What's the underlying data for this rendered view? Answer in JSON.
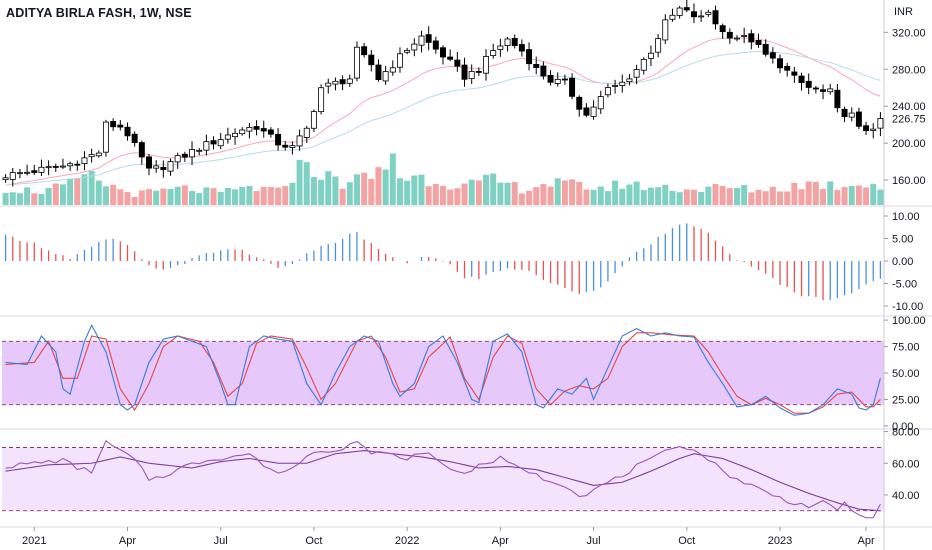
{
  "chart_data": {
    "type": "candlestick",
    "title": "ADITYA BIRLA FASH, 1W, NSE",
    "currency": "INR",
    "colors": {
      "candle_up": "#ffffff",
      "candle_down": "#000000",
      "volume_up": "#7fd1c4",
      "volume_down": "#f4a3a3",
      "ema_fast": "#f7a9b8",
      "ema_slow": "#b5dde6",
      "macd_up": "#4a90e2",
      "macd_down": "#e85050",
      "stoch_k": "#3a7bd5",
      "stoch_d": "#e84545",
      "stoch_band": "#e7c8fb",
      "rsi_line": "#9b55b8",
      "rsi_ma": "#7b3f9a",
      "rsi_band": "#f3e3fc",
      "dash_line": "#7a1a4a"
    },
    "price_axis": {
      "ticks": [
        {
          "label": "320.00",
          "value": 320
        },
        {
          "label": "280.00",
          "value": 280
        },
        {
          "label": "240.00",
          "value": 240
        },
        {
          "label": "200.00",
          "value": 200
        },
        {
          "label": "160.00",
          "value": 160
        }
      ],
      "last_price_label": "226.75",
      "last_price": 226.75,
      "range": [
        133,
        355
      ]
    },
    "macd_axis": {
      "ticks": [
        {
          "label": "10.00",
          "value": 10
        },
        {
          "label": "5.00",
          "value": 5
        },
        {
          "label": "0.00",
          "value": 0
        },
        {
          "label": "-5.00",
          "value": -5
        },
        {
          "label": "-10.00",
          "value": -10
        }
      ],
      "range": [
        -12,
        12
      ]
    },
    "stoch_axis": {
      "ticks": [
        {
          "label": "100.00",
          "value": 100
        },
        {
          "label": "75.00",
          "value": 75
        },
        {
          "label": "50.00",
          "value": 50
        },
        {
          "label": "25.00",
          "value": 25
        },
        {
          "label": "0.00",
          "value": 0
        }
      ],
      "range": [
        -2,
        102
      ],
      "bands": [
        80,
        20
      ]
    },
    "rsi_axis": {
      "ticks": [
        {
          "label": "80.00",
          "value": 80
        },
        {
          "label": "60.00",
          "value": 60
        },
        {
          "label": "40.00",
          "value": 40
        }
      ],
      "range": [
        21,
        81
      ],
      "bands": [
        70,
        30
      ]
    },
    "x_ticks": [
      {
        "label": "2021",
        "index": 4
      },
      {
        "label": "Apr",
        "index": 17
      },
      {
        "label": "Jul",
        "index": 30
      },
      {
        "label": "Oct",
        "index": 43
      },
      {
        "label": "2022",
        "index": 56
      },
      {
        "label": "Apr",
        "index": 69
      },
      {
        "label": "Jul",
        "index": 82
      },
      {
        "label": "Oct",
        "index": 95
      },
      {
        "label": "2023",
        "index": 108
      },
      {
        "label": "Apr",
        "index": 120
      }
    ],
    "price_pivots": [
      [
        0,
        165
      ],
      [
        4,
        170
      ],
      [
        8,
        175
      ],
      [
        10,
        180
      ],
      [
        13,
        190
      ],
      [
        14,
        220
      ],
      [
        16,
        218
      ],
      [
        17,
        210
      ],
      [
        20,
        170
      ],
      [
        22,
        175
      ],
      [
        27,
        195
      ],
      [
        30,
        205
      ],
      [
        33,
        215
      ],
      [
        35,
        218
      ],
      [
        38,
        200
      ],
      [
        40,
        195
      ],
      [
        42,
        215
      ],
      [
        44,
        260
      ],
      [
        48,
        270
      ],
      [
        49,
        300
      ],
      [
        51,
        285
      ],
      [
        52,
        270
      ],
      [
        54,
        285
      ],
      [
        56,
        302
      ],
      [
        58,
        315
      ],
      [
        61,
        295
      ],
      [
        64,
        272
      ],
      [
        66,
        280
      ],
      [
        68,
        300
      ],
      [
        70,
        312
      ],
      [
        72,
        300
      ],
      [
        74,
        280
      ],
      [
        76,
        268
      ],
      [
        78,
        265
      ],
      [
        80,
        240
      ],
      [
        81,
        230
      ],
      [
        82,
        240
      ],
      [
        84,
        258
      ],
      [
        86,
        265
      ],
      [
        88,
        280
      ],
      [
        90,
        300
      ],
      [
        92,
        330
      ],
      [
        94,
        345
      ],
      [
        96,
        338
      ],
      [
        97,
        335
      ],
      [
        98,
        342
      ],
      [
        100,
        320
      ],
      [
        102,
        315
      ],
      [
        104,
        312
      ],
      [
        106,
        295
      ],
      [
        108,
        285
      ],
      [
        110,
        270
      ],
      [
        112,
        260
      ],
      [
        114,
        255
      ],
      [
        115,
        255
      ],
      [
        116,
        235
      ],
      [
        118,
        230
      ],
      [
        119,
        215
      ],
      [
        120,
        215
      ],
      [
        121,
        218
      ],
      [
        122,
        226.75
      ]
    ],
    "volume_pivots": [
      [
        0,
        0.3
      ],
      [
        5,
        0.25
      ],
      [
        10,
        0.4
      ],
      [
        11,
        0.55
      ],
      [
        14,
        0.38
      ],
      [
        16,
        0.28
      ],
      [
        18,
        0.2
      ],
      [
        25,
        0.3
      ],
      [
        30,
        0.22
      ],
      [
        34,
        0.32
      ],
      [
        38,
        0.25
      ],
      [
        40,
        0.55
      ],
      [
        42,
        0.8
      ],
      [
        44,
        0.55
      ],
      [
        47,
        0.4
      ],
      [
        51,
        0.52
      ],
      [
        53,
        0.68
      ],
      [
        54,
        1.0
      ],
      [
        55,
        0.5
      ],
      [
        58,
        0.5
      ],
      [
        64,
        0.35
      ],
      [
        68,
        0.45
      ],
      [
        72,
        0.3
      ],
      [
        76,
        0.4
      ],
      [
        80,
        0.35
      ],
      [
        84,
        0.3
      ],
      [
        86,
        0.4
      ],
      [
        88,
        0.35
      ],
      [
        92,
        0.32
      ],
      [
        96,
        0.28
      ],
      [
        100,
        0.32
      ],
      [
        104,
        0.28
      ],
      [
        108,
        0.3
      ],
      [
        112,
        0.4
      ],
      [
        116,
        0.35
      ],
      [
        120,
        0.42
      ],
      [
        122,
        0.32
      ]
    ],
    "macd_pivots": [
      [
        0,
        5.5
      ],
      [
        3,
        4.5
      ],
      [
        6,
        2.5
      ],
      [
        9,
        0.5
      ],
      [
        12,
        3.0
      ],
      [
        14,
        4.8
      ],
      [
        16,
        4.5
      ],
      [
        18,
        2.0
      ],
      [
        19,
        0.0
      ],
      [
        21,
        -2.0
      ],
      [
        24,
        -1.0
      ],
      [
        27,
        1.0
      ],
      [
        30,
        2.5
      ],
      [
        33,
        2.5
      ],
      [
        35,
        1.0
      ],
      [
        37,
        -1.0
      ],
      [
        39,
        -1.5
      ],
      [
        41,
        0.5
      ],
      [
        43,
        2.5
      ],
      [
        45,
        3.5
      ],
      [
        47,
        5.0
      ],
      [
        49,
        6.5
      ],
      [
        50,
        5.0
      ],
      [
        52,
        2.5
      ],
      [
        54,
        0.5
      ],
      [
        56,
        -0.5
      ],
      [
        58,
        1.0
      ],
      [
        60,
        0.5
      ],
      [
        62,
        -1.0
      ],
      [
        64,
        -3.5
      ],
      [
        66,
        -4.0
      ],
      [
        68,
        -2.5
      ],
      [
        70,
        -1.5
      ],
      [
        72,
        -2.0
      ],
      [
        74,
        -3.0
      ],
      [
        76,
        -5.0
      ],
      [
        78,
        -6.0
      ],
      [
        80,
        -7.0
      ],
      [
        81,
        -7.0
      ],
      [
        83,
        -5.5
      ],
      [
        85,
        -3.0
      ],
      [
        87,
        0.5
      ],
      [
        89,
        3.0
      ],
      [
        91,
        5.0
      ],
      [
        93,
        7.0
      ],
      [
        95,
        8.5
      ],
      [
        96,
        8.0
      ],
      [
        98,
        6.0
      ],
      [
        100,
        3.0
      ],
      [
        102,
        0.5
      ],
      [
        104,
        -1.5
      ],
      [
        106,
        -3.0
      ],
      [
        108,
        -5.0
      ],
      [
        110,
        -7.0
      ],
      [
        112,
        -8.0
      ],
      [
        114,
        -8.5
      ],
      [
        116,
        -8.0
      ],
      [
        118,
        -7.0
      ],
      [
        120,
        -5.5
      ],
      [
        122,
        -4.0
      ]
    ],
    "stoch_k_pivots": [
      [
        0,
        60
      ],
      [
        3,
        58
      ],
      [
        5,
        85
      ],
      [
        7,
        70
      ],
      [
        8,
        35
      ],
      [
        9,
        30
      ],
      [
        11,
        80
      ],
      [
        12,
        95
      ],
      [
        14,
        70
      ],
      [
        16,
        20
      ],
      [
        17,
        15
      ],
      [
        18,
        20
      ],
      [
        20,
        60
      ],
      [
        22,
        82
      ],
      [
        24,
        85
      ],
      [
        26,
        80
      ],
      [
        28,
        75
      ],
      [
        30,
        40
      ],
      [
        31,
        20
      ],
      [
        32,
        20
      ],
      [
        34,
        75
      ],
      [
        36,
        85
      ],
      [
        38,
        82
      ],
      [
        40,
        80
      ],
      [
        42,
        40
      ],
      [
        44,
        20
      ],
      [
        46,
        50
      ],
      [
        48,
        75
      ],
      [
        50,
        85
      ],
      [
        52,
        80
      ],
      [
        54,
        40
      ],
      [
        55,
        28
      ],
      [
        57,
        40
      ],
      [
        59,
        75
      ],
      [
        61,
        85
      ],
      [
        63,
        60
      ],
      [
        65,
        25
      ],
      [
        66,
        22
      ],
      [
        68,
        80
      ],
      [
        70,
        87
      ],
      [
        72,
        70
      ],
      [
        74,
        20
      ],
      [
        75,
        17
      ],
      [
        77,
        35
      ],
      [
        79,
        30
      ],
      [
        81,
        45
      ],
      [
        82,
        25
      ],
      [
        84,
        55
      ],
      [
        86,
        85
      ],
      [
        88,
        92
      ],
      [
        90,
        85
      ],
      [
        92,
        88
      ],
      [
        94,
        85
      ],
      [
        96,
        84
      ],
      [
        98,
        60
      ],
      [
        100,
        40
      ],
      [
        102,
        18
      ],
      [
        104,
        20
      ],
      [
        106,
        28
      ],
      [
        108,
        17
      ],
      [
        110,
        10
      ],
      [
        112,
        12
      ],
      [
        114,
        20
      ],
      [
        116,
        35
      ],
      [
        118,
        30
      ],
      [
        119,
        17
      ],
      [
        120,
        15
      ],
      [
        121,
        20
      ],
      [
        122,
        45
      ]
    ],
    "stoch_d_pivots": [
      [
        0,
        58
      ],
      [
        4,
        60
      ],
      [
        6,
        80
      ],
      [
        8,
        45
      ],
      [
        10,
        45
      ],
      [
        12,
        85
      ],
      [
        14,
        82
      ],
      [
        16,
        35
      ],
      [
        18,
        15
      ],
      [
        20,
        40
      ],
      [
        22,
        75
      ],
      [
        24,
        85
      ],
      [
        27,
        80
      ],
      [
        29,
        60
      ],
      [
        31,
        28
      ],
      [
        33,
        40
      ],
      [
        35,
        78
      ],
      [
        37,
        85
      ],
      [
        40,
        82
      ],
      [
        42,
        55
      ],
      [
        44,
        25
      ],
      [
        46,
        40
      ],
      [
        49,
        80
      ],
      [
        51,
        85
      ],
      [
        53,
        65
      ],
      [
        55,
        32
      ],
      [
        57,
        35
      ],
      [
        59,
        65
      ],
      [
        62,
        84
      ],
      [
        64,
        45
      ],
      [
        66,
        25
      ],
      [
        68,
        65
      ],
      [
        70,
        85
      ],
      [
        72,
        78
      ],
      [
        74,
        35
      ],
      [
        76,
        20
      ],
      [
        78,
        33
      ],
      [
        80,
        38
      ],
      [
        82,
        35
      ],
      [
        84,
        45
      ],
      [
        86,
        75
      ],
      [
        88,
        88
      ],
      [
        90,
        88
      ],
      [
        93,
        86
      ],
      [
        96,
        85
      ],
      [
        98,
        70
      ],
      [
        100,
        48
      ],
      [
        102,
        28
      ],
      [
        104,
        20
      ],
      [
        106,
        26
      ],
      [
        108,
        20
      ],
      [
        110,
        12
      ],
      [
        112,
        12
      ],
      [
        114,
        18
      ],
      [
        116,
        30
      ],
      [
        118,
        32
      ],
      [
        120,
        18
      ],
      [
        121,
        18
      ],
      [
        122,
        25
      ]
    ],
    "rsi_pivots": [
      [
        0,
        58
      ],
      [
        4,
        60
      ],
      [
        8,
        62
      ],
      [
        10,
        57
      ],
      [
        12,
        55
      ],
      [
        14,
        73
      ],
      [
        16,
        68
      ],
      [
        18,
        62
      ],
      [
        20,
        50
      ],
      [
        22,
        52
      ],
      [
        25,
        58
      ],
      [
        28,
        62
      ],
      [
        31,
        64
      ],
      [
        34,
        66
      ],
      [
        37,
        55
      ],
      [
        39,
        55
      ],
      [
        41,
        60
      ],
      [
        43,
        68
      ],
      [
        45,
        68
      ],
      [
        47,
        70
      ],
      [
        49,
        74
      ],
      [
        51,
        65
      ],
      [
        53,
        68
      ],
      [
        55,
        62
      ],
      [
        57,
        65
      ],
      [
        59,
        66
      ],
      [
        61,
        60
      ],
      [
        63,
        54
      ],
      [
        65,
        56
      ],
      [
        67,
        60
      ],
      [
        69,
        63
      ],
      [
        71,
        58
      ],
      [
        73,
        55
      ],
      [
        75,
        50
      ],
      [
        77,
        48
      ],
      [
        79,
        44
      ],
      [
        80,
        39
      ],
      [
        82,
        43
      ],
      [
        84,
        48
      ],
      [
        86,
        52
      ],
      [
        88,
        58
      ],
      [
        90,
        62
      ],
      [
        92,
        67
      ],
      [
        94,
        72
      ],
      [
        96,
        68
      ],
      [
        98,
        63
      ],
      [
        100,
        55
      ],
      [
        102,
        50
      ],
      [
        104,
        46
      ],
      [
        106,
        42
      ],
      [
        108,
        38
      ],
      [
        110,
        35
      ],
      [
        112,
        33
      ],
      [
        114,
        35
      ],
      [
        116,
        30
      ],
      [
        117,
        36
      ],
      [
        119,
        26
      ],
      [
        120,
        25
      ],
      [
        121,
        27
      ],
      [
        122,
        35
      ]
    ],
    "rsi_ma_pivots": [
      [
        0,
        55
      ],
      [
        6,
        59
      ],
      [
        12,
        60
      ],
      [
        16,
        64
      ],
      [
        20,
        60
      ],
      [
        26,
        57
      ],
      [
        30,
        61
      ],
      [
        34,
        63
      ],
      [
        38,
        60
      ],
      [
        42,
        60
      ],
      [
        46,
        66
      ],
      [
        50,
        68
      ],
      [
        54,
        66
      ],
      [
        58,
        64
      ],
      [
        62,
        61
      ],
      [
        66,
        57
      ],
      [
        70,
        58
      ],
      [
        74,
        56
      ],
      [
        78,
        51
      ],
      [
        82,
        46
      ],
      [
        86,
        48
      ],
      [
        90,
        55
      ],
      [
        94,
        63
      ],
      [
        96,
        66
      ],
      [
        100,
        63
      ],
      [
        104,
        56
      ],
      [
        108,
        48
      ],
      [
        112,
        41
      ],
      [
        116,
        35
      ],
      [
        119,
        31
      ],
      [
        122,
        30
      ]
    ]
  }
}
